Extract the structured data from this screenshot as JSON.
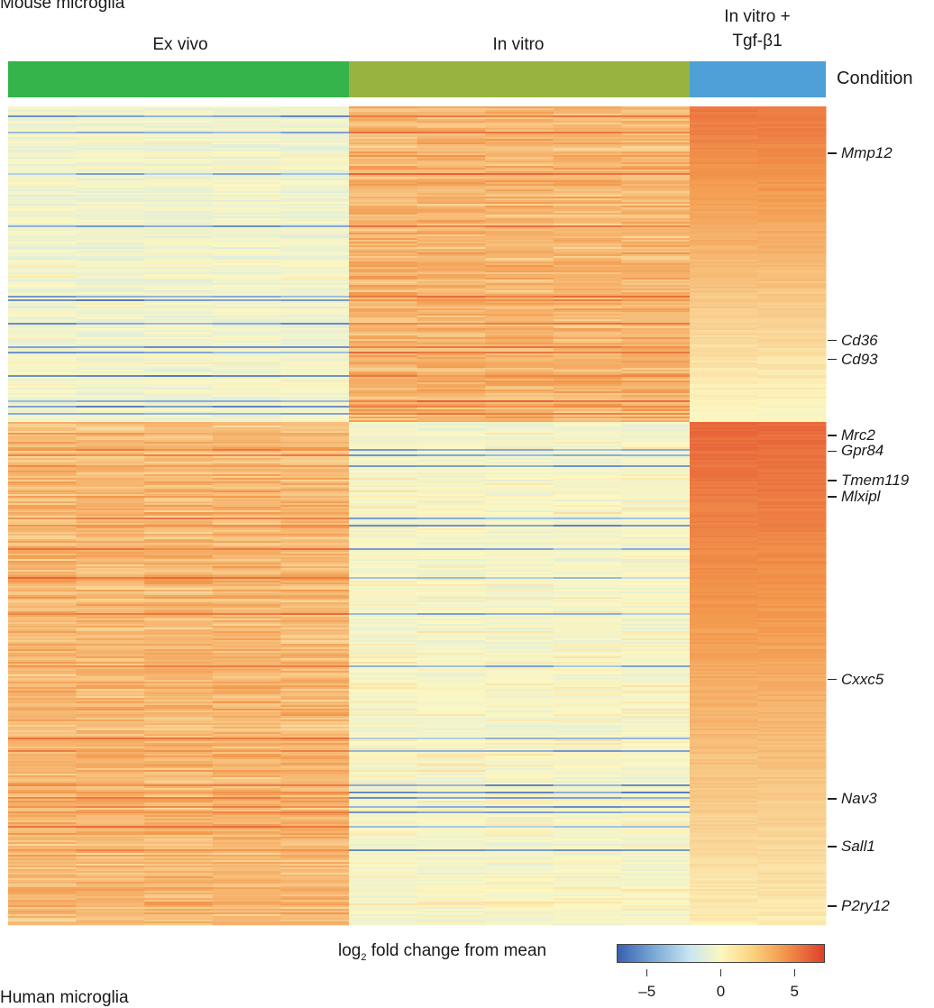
{
  "figure": {
    "top_title": "Mouse microglia",
    "bottom_title": "Human microglia"
  },
  "colors": {
    "ex_vivo": "#34b44a",
    "in_vitro": "#98b33f",
    "in_vitro_tgf": "#4f9fd8"
  },
  "chart_data": {
    "type": "heatmap",
    "title": "Mouse microglia",
    "condition_track_label": "Condition",
    "groups": [
      {
        "label": "Ex vivo",
        "samples": 5,
        "color": "#34b44a"
      },
      {
        "label": "In vitro",
        "samples": 5,
        "color": "#98b33f"
      },
      {
        "label": "In vitro + Tgf-β1",
        "label_lines": [
          "In vitro +",
          "Tgf-β1"
        ],
        "samples": 2,
        "color": "#4f9fd8"
      }
    ],
    "gene_labels": [
      "Mmp12",
      "Cd36",
      "Cd93",
      "Mrc2",
      "Gpr84",
      "Tmem119",
      "Mlxipl",
      "Cxxc5",
      "Nav3",
      "Sall1",
      "P2ry12"
    ],
    "gene_label_fraction": [
      0.057,
      0.286,
      0.309,
      0.402,
      0.421,
      0.457,
      0.477,
      0.7,
      0.846,
      0.904,
      0.977
    ],
    "clusters": [
      {
        "name": "top",
        "row_fraction": [
          0.0,
          0.385
        ],
        "ex_vivo_level": -0.8,
        "in_vitro_level": 2.5,
        "tgf_level": 2.0
      },
      {
        "name": "bottom",
        "row_fraction": [
          0.385,
          1.0
        ],
        "ex_vivo_level": 2.4,
        "in_vitro_level": -0.4,
        "tgf_level": 2.6
      }
    ],
    "colorbar": {
      "label_prefix": "log",
      "label_sub": "2",
      "label_suffix": " fold change from mean",
      "range": [
        -7,
        7
      ],
      "ticks": [
        -5,
        0,
        5
      ],
      "tick_labels": [
        "–5",
        "0",
        "5"
      ],
      "colors": [
        "#3a5fb0",
        "#c8e6f3",
        "#fdf7c0",
        "#f39a4e",
        "#e03f2b"
      ]
    }
  }
}
